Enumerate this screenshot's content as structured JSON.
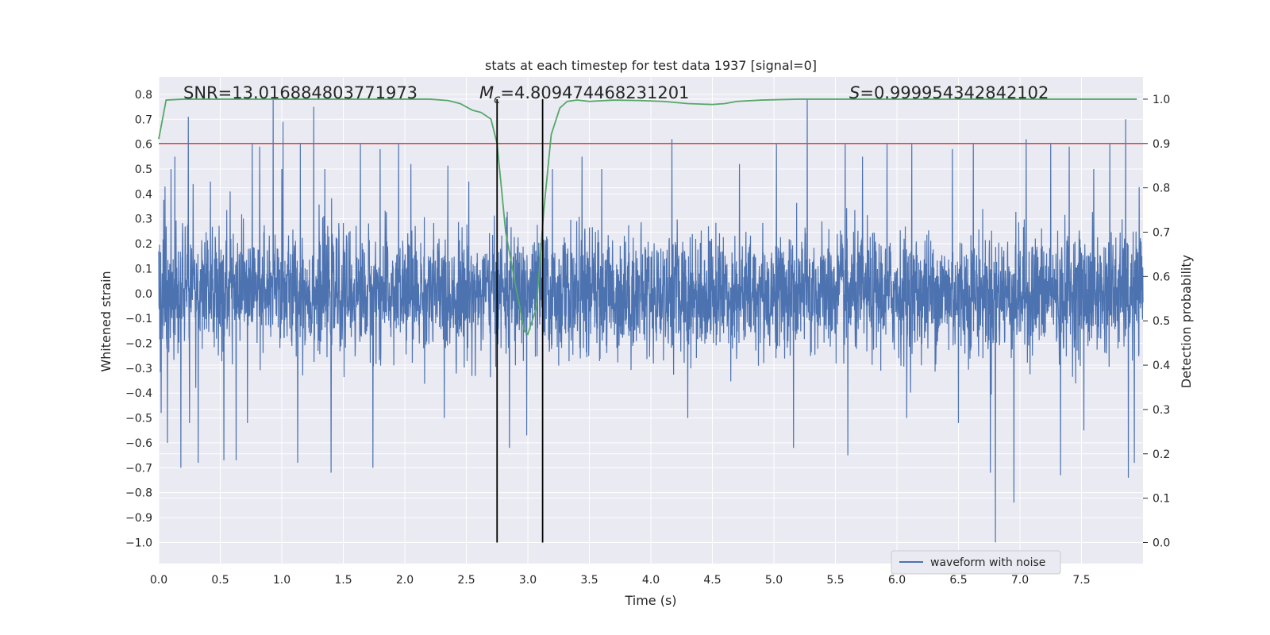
{
  "chart_data": {
    "type": "line",
    "title": "stats at each timestep for test data 1937 [signal=0]",
    "xlabel": "Time (s)",
    "ylabel": "Whitened strain",
    "y2label": "Detection probability",
    "xlim": [
      0.0,
      8.0
    ],
    "ylim": [
      -1.085,
      0.87
    ],
    "y2lim": [
      -0.0475,
      1.05
    ],
    "x_ticks": [
      "0.0",
      "0.5",
      "1.0",
      "1.5",
      "2.0",
      "2.5",
      "3.0",
      "3.5",
      "4.0",
      "4.5",
      "5.0",
      "5.5",
      "6.0",
      "6.5",
      "7.0",
      "7.5"
    ],
    "y_ticks": [
      "0.8",
      "0.7",
      "0.6",
      "0.5",
      "0.4",
      "0.3",
      "0.2",
      "0.1",
      "0.0",
      "−0.1",
      "−0.2",
      "−0.3",
      "−0.4",
      "−0.5",
      "−0.6",
      "−0.7",
      "−0.8",
      "−0.9",
      "−1.0"
    ],
    "y2_ticks": [
      "1.0",
      "0.9",
      "0.8",
      "0.7",
      "0.6",
      "0.5",
      "0.4",
      "0.3",
      "0.2",
      "0.1",
      "0.0"
    ],
    "grid": true,
    "legend": {
      "placement": "lower-right",
      "entries": [
        "waveform with noise"
      ]
    },
    "annotations": {
      "snr": "SNR=13.016884803771973",
      "mc_symbol": "M",
      "mc_sub": "c",
      "mc_value": "=4.809474468231201",
      "s_symbol": "S",
      "s_value": "=0.999954342842102"
    },
    "threshold": {
      "y2": 0.9,
      "color": "#c44e52"
    },
    "vlines": {
      "x": [
        2.75,
        3.12
      ],
      "y2_range": [
        0.0,
        1.0
      ],
      "color": "#000000"
    },
    "series": [
      {
        "name": "waveform with noise",
        "axis": "left",
        "color": "#4c72b0",
        "noise": {
          "samples": 4096,
          "sigma": 0.12
        },
        "peaks": [
          {
            "x": 0.05,
            "y": 0.43
          },
          {
            "x": 0.1,
            "y": 0.5
          },
          {
            "x": 0.13,
            "y": 0.55
          },
          {
            "x": 0.18,
            "y": 0.68
          },
          {
            "x": 0.24,
            "y": 0.71
          },
          {
            "x": 0.28,
            "y": 0.44
          },
          {
            "x": 0.42,
            "y": 0.45
          },
          {
            "x": 0.58,
            "y": 0.41
          },
          {
            "x": 0.76,
            "y": 0.6
          },
          {
            "x": 0.82,
            "y": 0.59
          },
          {
            "x": 0.93,
            "y": 0.78
          },
          {
            "x": 1.0,
            "y": 0.5
          },
          {
            "x": 1.01,
            "y": 0.69
          },
          {
            "x": 1.15,
            "y": 0.6
          },
          {
            "x": 1.26,
            "y": 0.75
          },
          {
            "x": 1.35,
            "y": 0.5
          },
          {
            "x": 1.64,
            "y": 0.6
          },
          {
            "x": 1.8,
            "y": 0.58
          },
          {
            "x": 1.95,
            "y": 0.6
          },
          {
            "x": 2.05,
            "y": 0.52
          },
          {
            "x": 2.52,
            "y": 0.45
          },
          {
            "x": 3.2,
            "y": 0.5
          },
          {
            "x": 3.44,
            "y": 0.55
          },
          {
            "x": 3.6,
            "y": 0.5
          },
          {
            "x": 4.17,
            "y": 0.62
          },
          {
            "x": 4.3,
            "y": 0.5
          },
          {
            "x": 4.72,
            "y": 0.52
          },
          {
            "x": 5.02,
            "y": 0.6
          },
          {
            "x": 5.27,
            "y": 0.78
          },
          {
            "x": 5.58,
            "y": 0.6
          },
          {
            "x": 5.72,
            "y": 0.55
          },
          {
            "x": 5.92,
            "y": 0.6
          },
          {
            "x": 6.12,
            "y": 0.6
          },
          {
            "x": 6.45,
            "y": 0.58
          },
          {
            "x": 6.62,
            "y": 0.6
          },
          {
            "x": 7.05,
            "y": 0.62
          },
          {
            "x": 7.25,
            "y": 0.6
          },
          {
            "x": 7.4,
            "y": 0.59
          },
          {
            "x": 7.52,
            "y": 0.68
          },
          {
            "x": 7.6,
            "y": 0.5
          },
          {
            "x": 7.73,
            "y": 0.6
          },
          {
            "x": 7.86,
            "y": 0.7
          },
          {
            "x": 0.02,
            "y": -0.48
          },
          {
            "x": 0.07,
            "y": -0.6
          },
          {
            "x": 0.18,
            "y": -0.7
          },
          {
            "x": 0.25,
            "y": -0.52
          },
          {
            "x": 0.32,
            "y": -0.68
          },
          {
            "x": 0.53,
            "y": -0.67
          },
          {
            "x": 0.63,
            "y": -0.67
          },
          {
            "x": 0.72,
            "y": -0.52
          },
          {
            "x": 1.13,
            "y": -0.68
          },
          {
            "x": 1.4,
            "y": -0.72
          },
          {
            "x": 1.74,
            "y": -0.7
          },
          {
            "x": 2.32,
            "y": -0.5
          },
          {
            "x": 2.85,
            "y": -0.62
          },
          {
            "x": 2.99,
            "y": -0.57
          },
          {
            "x": 4.3,
            "y": -0.5
          },
          {
            "x": 5.16,
            "y": -0.62
          },
          {
            "x": 5.6,
            "y": -0.65
          },
          {
            "x": 6.08,
            "y": -0.5
          },
          {
            "x": 6.5,
            "y": -0.52
          },
          {
            "x": 6.76,
            "y": -0.72
          },
          {
            "x": 6.8,
            "y": -1.0
          },
          {
            "x": 6.95,
            "y": -0.84
          },
          {
            "x": 7.33,
            "y": -0.73
          },
          {
            "x": 7.52,
            "y": -0.55
          },
          {
            "x": 7.88,
            "y": -0.74
          },
          {
            "x": 7.93,
            "y": -0.68
          }
        ]
      },
      {
        "name": "Detection probability",
        "axis": "right",
        "color": "#55a868",
        "x": [
          0.0,
          0.06,
          0.2,
          0.4,
          0.6,
          0.8,
          1.0,
          1.2,
          1.4,
          1.6,
          1.8,
          2.0,
          2.2,
          2.35,
          2.45,
          2.55,
          2.62,
          2.7,
          2.75,
          2.82,
          2.9,
          2.97,
          3.0,
          3.07,
          3.13,
          3.19,
          3.26,
          3.32,
          3.4,
          3.5,
          3.7,
          3.9,
          4.1,
          4.3,
          4.5,
          4.6,
          4.7,
          4.9,
          5.2,
          5.5,
          6.0,
          6.5,
          7.0,
          7.5,
          7.95
        ],
        "y": [
          0.91,
          0.998,
          1.0,
          1.0,
          1.0,
          1.0,
          1.0,
          1.0,
          1.0,
          1.0,
          1.0,
          1.0,
          1.0,
          0.997,
          0.99,
          0.975,
          0.97,
          0.955,
          0.9,
          0.7,
          0.58,
          0.48,
          0.47,
          0.53,
          0.75,
          0.92,
          0.98,
          0.995,
          0.998,
          0.995,
          0.998,
          0.997,
          0.995,
          0.99,
          0.988,
          0.99,
          0.995,
          0.998,
          1.0,
          1.0,
          1.0,
          1.0,
          1.0,
          1.0,
          1.0
        ]
      }
    ]
  }
}
